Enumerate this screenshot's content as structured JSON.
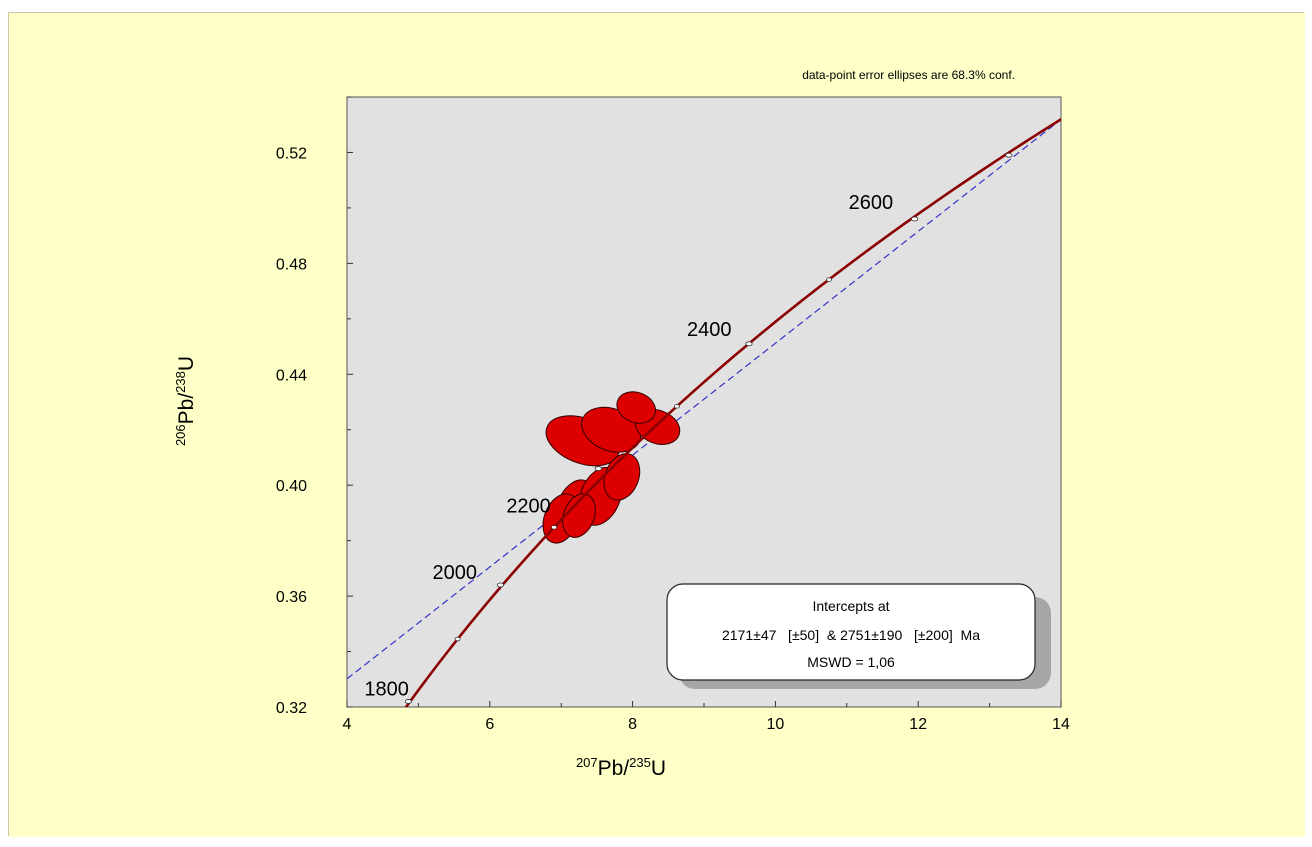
{
  "colors": {
    "background": "#ffffc8",
    "plot_area": "#e1e1e1",
    "concordia": "#8b0000",
    "discordia": "#3333cc",
    "ellipse_fill": "#dd0000",
    "ellipse_stroke": "#330000"
  },
  "chart_data": {
    "type": "scatter",
    "subtype": "U-Pb concordia diagram",
    "note": "data-point error ellipses are 68.3% conf.",
    "xlabel": {
      "base1": "207",
      "mid": "Pb/",
      "base2": "235",
      "end": "U"
    },
    "ylabel": {
      "base1": "206",
      "mid": "Pb/",
      "base2": "238",
      "end": "U"
    },
    "xlim": [
      4,
      14
    ],
    "ylim": [
      0.32,
      0.54
    ],
    "xticks": [
      4,
      6,
      8,
      10,
      12,
      14
    ],
    "xtick_labels": [
      "4",
      "6",
      "8",
      "10",
      "12",
      "14"
    ],
    "yticks": [
      0.32,
      0.36,
      0.4,
      0.44,
      0.48,
      0.52
    ],
    "ytick_labels": [
      "0.32",
      "0.36",
      "0.40",
      "0.44",
      "0.48",
      "0.52"
    ],
    "grid": false,
    "concordia_ages": [
      {
        "age": 1800,
        "label": "1800",
        "x": 4.86,
        "y": 0.322
      },
      {
        "age": 2000,
        "label": "2000",
        "x": 6.15,
        "y": 0.364
      },
      {
        "age": 2200,
        "label": "2200",
        "x": 7.52,
        "y": 0.406
      },
      {
        "age": 2400,
        "label": "2400",
        "x": 9.63,
        "y": 0.451
      },
      {
        "age": 2600,
        "label": "2600",
        "x": 11.95,
        "y": 0.496
      },
      {
        "age": 2751,
        "label": "",
        "x": 13.27,
        "y": 0.519
      }
    ],
    "minor_age_marks": [
      5.55,
      6.9,
      8.62,
      10.75
    ],
    "discordia": {
      "lower_intercept_ma": 2171,
      "upper_intercept_ma": 2751
    },
    "ellipses": [
      {
        "x": 7.3,
        "y": 0.416,
        "rx": 0.3,
        "ry": 0.025,
        "tilt": -0.8
      },
      {
        "x": 7.7,
        "y": 0.42,
        "rx": 0.28,
        "ry": 0.02,
        "tilt": -0.9
      },
      {
        "x": 8.35,
        "y": 0.421,
        "rx": 0.22,
        "ry": 0.015,
        "tilt": -0.8
      },
      {
        "x": 8.05,
        "y": 0.428,
        "rx": 0.2,
        "ry": 0.013,
        "tilt": -0.8
      },
      {
        "x": 7.2,
        "y": 0.392,
        "rx": 0.38,
        "ry": 0.012,
        "tilt": -0.78
      },
      {
        "x": 7.0,
        "y": 0.388,
        "rx": 0.34,
        "ry": 0.011,
        "tilt": -0.78
      },
      {
        "x": 7.55,
        "y": 0.396,
        "rx": 0.4,
        "ry": 0.013,
        "tilt": -0.78
      },
      {
        "x": 7.85,
        "y": 0.403,
        "rx": 0.32,
        "ry": 0.011,
        "tilt": -0.8
      },
      {
        "x": 7.25,
        "y": 0.389,
        "rx": 0.3,
        "ry": 0.01,
        "tilt": -0.78
      }
    ],
    "results_box": {
      "title": "Intercepts at",
      "line2": "2171±47   [±50]  & 2751±190   [±200]  Ma",
      "line3": "MSWD = 1,06"
    }
  }
}
